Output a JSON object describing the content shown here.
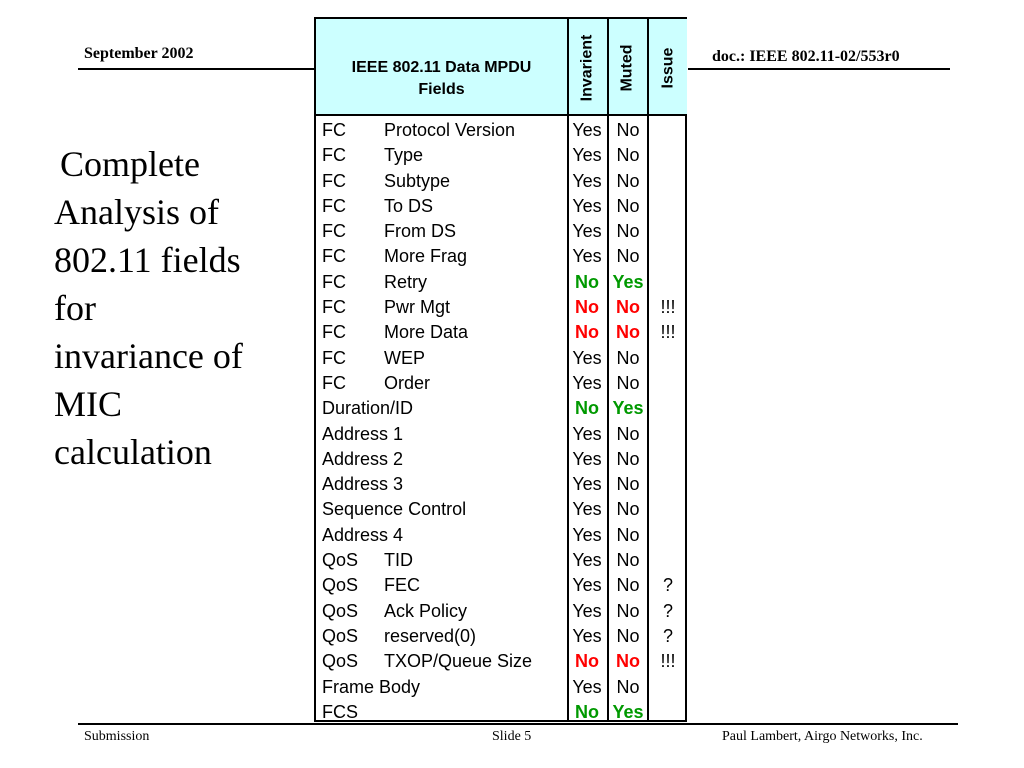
{
  "header": {
    "date": "September 2002",
    "doc": "doc.: IEEE 802.11-02/553r0"
  },
  "footer": {
    "left": "Submission",
    "center": "Slide 5",
    "right": "Paul Lambert, Airgo Networks, Inc."
  },
  "title_lines": [
    "Complete",
    "Analysis of",
    "802.11 fields",
    "for",
    "invariance of",
    "MIC",
    "calculation"
  ],
  "table": {
    "header": {
      "fields_line1": "IEEE 802.11 Data MPDU",
      "fields_line2": "Fields",
      "invariant": "Invarient",
      "muted": "Muted",
      "issue": "Issue"
    },
    "colors": {
      "no_red": "#ff0000",
      "green": "#009900",
      "header_bg": "#ccffff"
    },
    "rows": [
      {
        "name": "FC",
        "sub": "Protocol Version",
        "inv": "Yes",
        "mut": "No",
        "issue": "",
        "style": ""
      },
      {
        "name": "FC",
        "sub": "Type",
        "inv": "Yes",
        "mut": "No",
        "issue": "",
        "style": ""
      },
      {
        "name": "FC",
        "sub": "Subtype",
        "inv": "Yes",
        "mut": "No",
        "issue": "",
        "style": ""
      },
      {
        "name": "FC",
        "sub": "To DS",
        "inv": "Yes",
        "mut": "No",
        "issue": "",
        "style": ""
      },
      {
        "name": "FC",
        "sub": "From DS",
        "inv": "Yes",
        "mut": "No",
        "issue": "",
        "style": ""
      },
      {
        "name": "FC",
        "sub": "More Frag",
        "inv": "Yes",
        "mut": "No",
        "issue": "",
        "style": ""
      },
      {
        "name": "FC",
        "sub": "Retry",
        "inv": "No",
        "mut": "Yes",
        "issue": "",
        "style": "green"
      },
      {
        "name": "FC",
        "sub": "Pwr Mgt",
        "inv": "No",
        "mut": "No",
        "issue": "!!!",
        "style": "red"
      },
      {
        "name": "FC",
        "sub": "More Data",
        "inv": "No",
        "mut": "No",
        "issue": "!!!",
        "style": "red"
      },
      {
        "name": "FC",
        "sub": "WEP",
        "inv": "Yes",
        "mut": "No",
        "issue": "",
        "style": ""
      },
      {
        "name": "FC",
        "sub": "Order",
        "inv": "Yes",
        "mut": "No",
        "issue": "",
        "style": ""
      },
      {
        "name": "Duration/ID",
        "sub": "",
        "inv": "No",
        "mut": "Yes",
        "issue": "",
        "style": "green"
      },
      {
        "name": "Address 1",
        "sub": "",
        "inv": "Yes",
        "mut": "No",
        "issue": "",
        "style": ""
      },
      {
        "name": "Address 2",
        "sub": "",
        "inv": "Yes",
        "mut": "No",
        "issue": "",
        "style": ""
      },
      {
        "name": "Address 3",
        "sub": "",
        "inv": "Yes",
        "mut": "No",
        "issue": "",
        "style": ""
      },
      {
        "name": "Sequence Control",
        "sub": "",
        "inv": "Yes",
        "mut": "No",
        "issue": "",
        "style": ""
      },
      {
        "name": "Address 4",
        "sub": "",
        "inv": "Yes",
        "mut": "No",
        "issue": "",
        "style": ""
      },
      {
        "name": "QoS",
        "sub": "TID",
        "inv": "Yes",
        "mut": "No",
        "issue": "",
        "style": ""
      },
      {
        "name": "QoS",
        "sub": "FEC",
        "inv": "Yes",
        "mut": "No",
        "issue": "?",
        "style": ""
      },
      {
        "name": "QoS",
        "sub": "Ack Policy",
        "inv": "Yes",
        "mut": "No",
        "issue": "?",
        "style": ""
      },
      {
        "name": "QoS",
        "sub": "reserved(0)",
        "inv": "Yes",
        "mut": "No",
        "issue": "?",
        "style": ""
      },
      {
        "name": "QoS",
        "sub": "TXOP/Queue Size",
        "inv": "No",
        "mut": "No",
        "issue": "!!!",
        "style": "red"
      },
      {
        "name": "Frame Body",
        "sub": "",
        "inv": "Yes",
        "mut": "No",
        "issue": "",
        "style": ""
      },
      {
        "name": "FCS",
        "sub": "",
        "inv": "No",
        "mut": "Yes",
        "issue": "",
        "style": "green"
      }
    ]
  }
}
